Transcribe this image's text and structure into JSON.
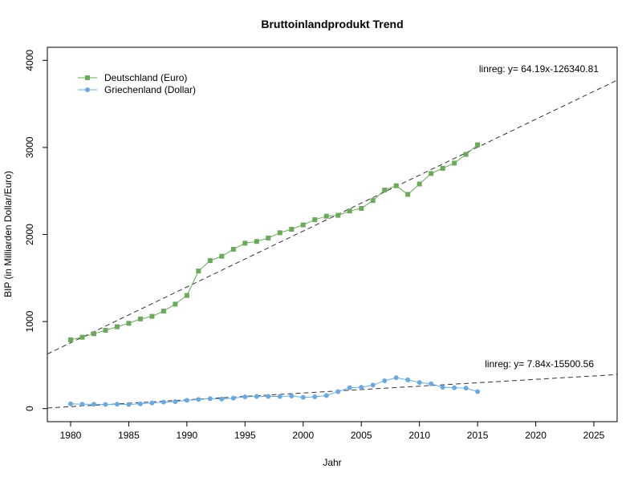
{
  "chart_data": {
    "type": "line",
    "title": "Bruttoinlandprodukt Trend",
    "xlabel": "Jahr",
    "ylabel": "BIP (in Milliarden Dollar/Euro)",
    "xlim": [
      1978,
      2027
    ],
    "ylim": [
      -150,
      4150
    ],
    "x_ticks": [
      1980,
      1985,
      1990,
      1995,
      2000,
      2005,
      2010,
      2015,
      2020,
      2025
    ],
    "y_ticks": [
      0,
      1000,
      2000,
      3000,
      4000
    ],
    "grid": false,
    "legend_position": "top-left",
    "series": [
      {
        "name": "Deutschland (Euro)",
        "color": "#6aaa5a",
        "marker": "square",
        "x": [
          1980,
          1981,
          1982,
          1983,
          1984,
          1985,
          1986,
          1987,
          1988,
          1989,
          1990,
          1991,
          1992,
          1993,
          1994,
          1995,
          1996,
          1997,
          1998,
          1999,
          2000,
          2001,
          2002,
          2003,
          2004,
          2005,
          2006,
          2007,
          2008,
          2009,
          2010,
          2011,
          2012,
          2013,
          2014,
          2015
        ],
        "y": [
          790,
          820,
          860,
          900,
          940,
          980,
          1030,
          1060,
          1120,
          1200,
          1300,
          1580,
          1700,
          1750,
          1830,
          1900,
          1920,
          1960,
          2020,
          2060,
          2110,
          2170,
          2210,
          2220,
          2270,
          2300,
          2390,
          2510,
          2560,
          2460,
          2580,
          2700,
          2760,
          2820,
          2920,
          3030
        ]
      },
      {
        "name": "Griechenland (Dollar)",
        "color": "#6aaae0",
        "marker": "circle",
        "x": [
          1980,
          1981,
          1982,
          1983,
          1984,
          1985,
          1986,
          1987,
          1988,
          1989,
          1990,
          1991,
          1992,
          1993,
          1994,
          1995,
          1996,
          1997,
          1998,
          1999,
          2000,
          2001,
          2002,
          2003,
          2004,
          2005,
          2006,
          2007,
          2008,
          2009,
          2010,
          2011,
          2012,
          2013,
          2014,
          2015
        ],
        "y": [
          55,
          50,
          50,
          48,
          50,
          48,
          55,
          65,
          75,
          80,
          95,
          105,
          115,
          110,
          120,
          135,
          140,
          140,
          140,
          145,
          130,
          135,
          150,
          195,
          240,
          245,
          270,
          320,
          355,
          330,
          300,
          285,
          245,
          240,
          235,
          195
        ]
      }
    ],
    "trendlines": [
      {
        "label": "linreg: y= 64.19x-126340.81",
        "slope": 64.19,
        "intercept": -126340.81
      },
      {
        "label": "linreg: y= 7.84x-15500.56",
        "slope": 7.84,
        "intercept": -15500.56
      }
    ]
  }
}
